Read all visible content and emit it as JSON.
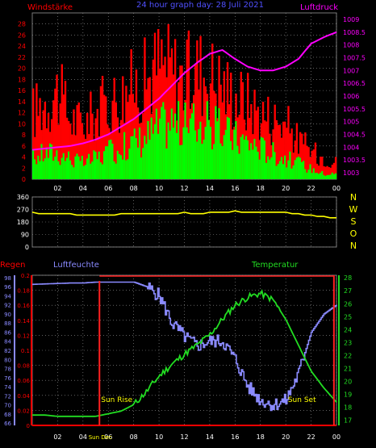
{
  "title": "24 hour graph day: 28 Juli 2021",
  "colors": {
    "background": "#000000",
    "grid": "#9a9a9a",
    "wind_gust": "#ff0000",
    "wind_avg": "#00ff00",
    "pressure": "#ff00ff",
    "direction": "#ffff00",
    "rain": "#ff0000",
    "humidity": "#8a8aff",
    "temperature": "#22dd22",
    "sun": "#ff2020",
    "sun_label": "#ffff00"
  },
  "chart_data": [
    {
      "id": "wind",
      "type": "bar",
      "title": "24 hour graph day: 28 Juli 2021",
      "left_label": "Windstärke",
      "right_label": "Luftdruck",
      "x_ticks": [
        "02",
        "04",
        "06",
        "08",
        "10",
        "12",
        "14",
        "16",
        "18",
        "20",
        "22",
        "00"
      ],
      "xlim": [
        0,
        24
      ],
      "ylim": [
        0,
        30
      ],
      "y_ticks": [
        0,
        2,
        4,
        6,
        8,
        10,
        12,
        14,
        16,
        18,
        20,
        22,
        24,
        26,
        28
      ],
      "y2lim": [
        1002.75,
        1009.25
      ],
      "y2_ticks": [
        1003,
        1003.5,
        1004,
        1004.5,
        1005,
        1005.5,
        1006,
        1006.5,
        1007,
        1007.5,
        1008,
        1008.5,
        1009
      ],
      "series": [
        {
          "name": "gust",
          "hours": [
            0,
            1,
            2,
            3,
            4,
            5,
            6,
            7,
            8,
            9,
            10,
            11,
            12,
            13,
            14,
            15,
            16,
            17,
            18,
            19,
            20,
            21,
            22,
            23,
            24
          ],
          "values": [
            12,
            14,
            16,
            11,
            10,
            12,
            14,
            15,
            17,
            18,
            21,
            20,
            18,
            20,
            19,
            17,
            15,
            14,
            12,
            11,
            10,
            7,
            5,
            4,
            3
          ]
        },
        {
          "name": "avg",
          "hours": [
            0,
            1,
            2,
            3,
            4,
            5,
            6,
            7,
            8,
            9,
            10,
            11,
            12,
            13,
            14,
            15,
            16,
            17,
            18,
            19,
            20,
            21,
            22,
            23,
            24
          ],
          "values": [
            4,
            5,
            5,
            4,
            3,
            4,
            5,
            6,
            7,
            8,
            10,
            11,
            10,
            11,
            10,
            9,
            8,
            7,
            6,
            5,
            4,
            3,
            2,
            1,
            1
          ]
        },
        {
          "name": "Luftdruck",
          "axis": "right",
          "hours": [
            0,
            1,
            2,
            3,
            4,
            5,
            6,
            7,
            8,
            9,
            10,
            11,
            12,
            13,
            14,
            15,
            16,
            17,
            18,
            19,
            20,
            21,
            22,
            23,
            24
          ],
          "values": [
            1003.9,
            1003.95,
            1004.0,
            1004.05,
            1004.15,
            1004.3,
            1004.5,
            1004.8,
            1005.1,
            1005.5,
            1005.9,
            1006.4,
            1006.9,
            1007.3,
            1007.65,
            1007.8,
            1007.45,
            1007.15,
            1007.0,
            1007.0,
            1007.15,
            1007.45,
            1008.05,
            1008.3,
            1008.5
          ]
        }
      ]
    },
    {
      "id": "direction",
      "type": "line",
      "xlim": [
        0,
        24
      ],
      "ylim": [
        0,
        360
      ],
      "y_ticks": [
        0,
        90,
        180,
        270,
        360
      ],
      "direction_labels": [
        "N",
        "W",
        "S",
        "O",
        "N"
      ],
      "series": [
        {
          "name": "direction",
          "hours": [
            0,
            1,
            2,
            3,
            4,
            5,
            6,
            7,
            8,
            9,
            10,
            11,
            12,
            13,
            14,
            15,
            16,
            17,
            18,
            19,
            20,
            21,
            22,
            23,
            24
          ],
          "values": [
            245,
            240,
            242,
            235,
            230,
            225,
            230,
            235,
            238,
            240,
            238,
            242,
            245,
            240,
            245,
            248,
            255,
            250,
            245,
            245,
            248,
            235,
            225,
            215,
            205
          ]
        }
      ]
    },
    {
      "id": "climate",
      "type": "line",
      "left_outer_label": "Regen",
      "left_label": "Luftfeuchte",
      "right_label": "Temperatur",
      "x_ticks": [
        "02",
        "04",
        "06",
        "08",
        "10",
        "12",
        "14",
        "16",
        "18",
        "20",
        "22",
        "00"
      ],
      "extra_x_tick": "Sun Dec",
      "xlim": [
        0,
        24
      ],
      "rain_ylim": [
        0,
        0.2
      ],
      "rain_ticks": [
        0,
        0.02,
        0.04,
        0.06,
        0.08,
        0.1,
        0.12,
        0.14,
        0.16,
        0.18,
        0.2
      ],
      "humidity_ylim": [
        65.5,
        98.5
      ],
      "humidity_ticks": [
        66,
        68,
        70,
        72,
        74,
        76,
        78,
        80,
        82,
        84,
        86,
        88,
        90,
        92,
        94,
        96,
        98
      ],
      "temperature_ylim": [
        16.6,
        28.2
      ],
      "temperature_ticks": [
        17,
        18,
        19,
        20,
        21,
        22,
        23,
        24,
        25,
        26,
        27,
        28
      ],
      "sun_rise_hour": 5.3,
      "sun_set_hour": 23.8,
      "sun_rise_label": "Sun Rise",
      "sun_set_label": "Sun Set",
      "series": [
        {
          "name": "Regen",
          "axis": "rain",
          "hours": [
            0,
            24
          ],
          "values": [
            0,
            0
          ]
        },
        {
          "name": "Luftfeuchte",
          "axis": "humidity",
          "hours": [
            0,
            1,
            2,
            3,
            4,
            5,
            6,
            7,
            8,
            9,
            10,
            11,
            12,
            13,
            14,
            15,
            16,
            17,
            18,
            19,
            20,
            21,
            22,
            23,
            24
          ],
          "values": [
            96.5,
            96.6,
            96.7,
            96.8,
            96.8,
            97,
            97,
            97,
            97,
            96,
            94,
            88,
            85,
            83,
            84,
            84,
            80,
            74,
            71,
            70,
            71,
            77,
            86,
            90,
            92
          ]
        },
        {
          "name": "Temperatur",
          "axis": "temperature",
          "hours": [
            0,
            1,
            2,
            3,
            4,
            5,
            6,
            7,
            8,
            9,
            10,
            11,
            12,
            13,
            14,
            15,
            16,
            17,
            18,
            19,
            20,
            21,
            22,
            23,
            24
          ],
          "values": [
            17.4,
            17.4,
            17.3,
            17.3,
            17.3,
            17.3,
            17.5,
            17.7,
            18.2,
            19.2,
            20.4,
            21.3,
            22.1,
            22.8,
            23.6,
            24.8,
            25.9,
            26.5,
            26.8,
            26.3,
            24.8,
            22.8,
            20.8,
            19.5,
            18.4
          ]
        }
      ]
    }
  ]
}
